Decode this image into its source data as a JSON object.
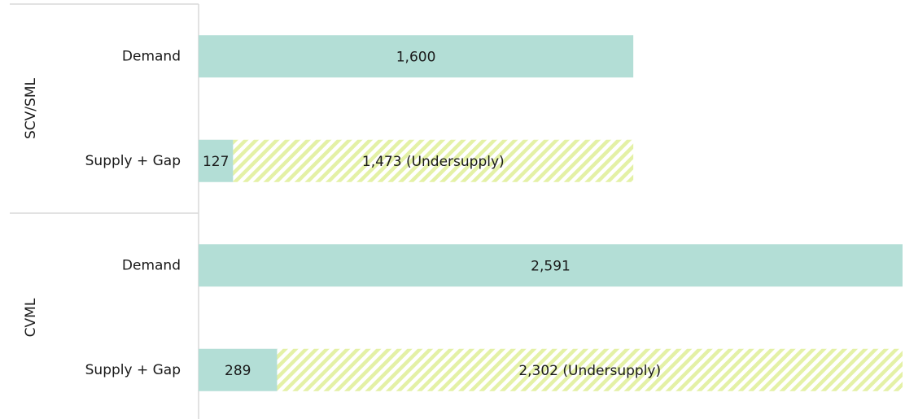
{
  "chart_data": {
    "type": "stacked-bar-horizontal",
    "groups": [
      {
        "name": "SCV/SML",
        "categories": [
          "Demand",
          "Supply + Gap"
        ]
      },
      {
        "name": "CVML",
        "categories": [
          "Demand",
          "Supply + Gap"
        ]
      }
    ],
    "series": [
      {
        "color": "#b3ded6",
        "values": [
          1600,
          null,
          2591,
          null
        ],
        "value_labels": [
          "1,600",
          null,
          "2,591",
          null
        ]
      },
      {
        "color": "#b3ded6",
        "values": [
          null,
          127,
          null,
          289
        ]
      },
      {
        "color": "#e4f1a6",
        "pattern": "hatch",
        "values": [
          null,
          1473,
          null,
          2302
        ],
        "value_labels": [
          null,
          "1,473 (Undersupply)",
          null,
          "2,302 (Undersupply)"
        ]
      }
    ],
    "xlim": [
      0,
      2600
    ]
  }
}
